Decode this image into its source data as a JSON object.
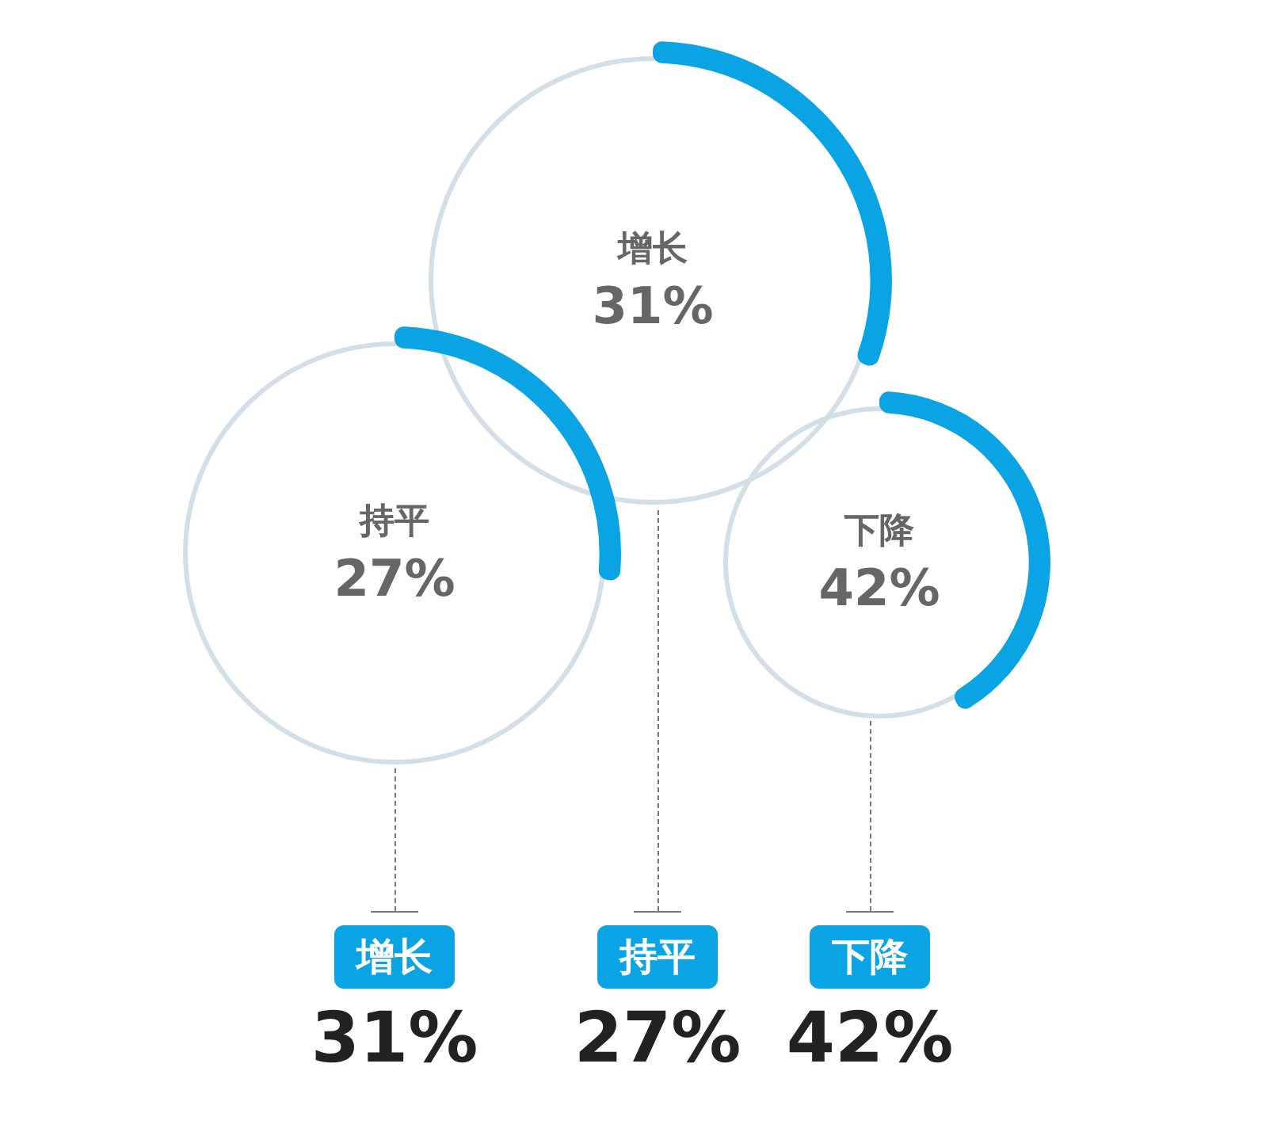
{
  "chart_data": [
    {
      "type": "other",
      "categories": [
        "增长"
      ],
      "values": [
        31
      ],
      "value_labels": [
        "31%"
      ],
      "color": "#0aa3e3"
    },
    {
      "type": "other",
      "categories": [
        "持平"
      ],
      "values": [
        27
      ],
      "value_labels": [
        "27%"
      ],
      "color": "#0aa3e3"
    },
    {
      "type": "other",
      "categories": [
        "下降"
      ],
      "values": [
        42
      ],
      "value_labels": [
        "42%"
      ],
      "color": "#0aa3e3"
    }
  ]
}
